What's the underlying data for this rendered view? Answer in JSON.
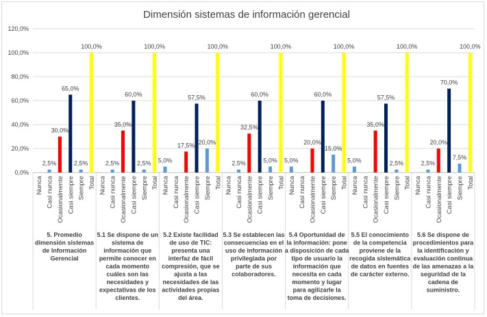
{
  "chart_data": {
    "type": "bar",
    "title": "Dimensión sistemas de información gerencial",
    "ylim": [
      0,
      120
    ],
    "yticks": [
      "0,0%",
      "20,0%",
      "40,0%",
      "60,0%",
      "80,0%",
      "100,0%",
      "120,0%"
    ],
    "grid": true,
    "legend": "none",
    "subcategories": [
      "Nunca",
      "Casi nunca",
      "Ocasionalmente",
      "Casi siempre",
      "Siempre",
      "Total"
    ],
    "colors": {
      "Nunca": "#5b9bd5",
      "Casi nunca": "#5b9bd5",
      "Ocasionalmente": "#ff0000",
      "Casi siempre": "#002060",
      "Siempre": "#5b9bd5",
      "Total": "#ffff00"
    },
    "groups": [
      {
        "label_lines": [
          "5. Promedio",
          "dimensión sistemas",
          "de Información",
          "Gerencial"
        ],
        "values": [
          0,
          2.5,
          30,
          65,
          2.5,
          100
        ],
        "labels": [
          "",
          "2,5%",
          "30,0%",
          "65,0%",
          "2,5%",
          "100,0%"
        ]
      },
      {
        "label_lines": [
          "5.1 Se dispone de un",
          "sistema de",
          "información que",
          "permite conocer en",
          "cada momento",
          "cuáles son las",
          "necesidades y",
          "expectativas de los",
          "clientes."
        ],
        "values": [
          0,
          2.5,
          35,
          60,
          2.5,
          100
        ],
        "labels": [
          "",
          "2,5%",
          "35,0%",
          "60,0%",
          "2,5%",
          "100,0%"
        ]
      },
      {
        "label_lines": [
          "5.2 Existe facilidad",
          "de uso de TIC:",
          "presenta una",
          "interfaz de fácil",
          "compresión, que se",
          "ajusta a las",
          "necesidades de las",
          "actividades propias",
          "del área."
        ],
        "values": [
          5,
          0,
          17.5,
          57.5,
          20,
          100
        ],
        "labels": [
          "5,0%",
          "",
          "17,5%",
          "57,5%",
          "20,0%",
          "100,0%"
        ]
      },
      {
        "label_lines": [
          "5.3 Se establecen las",
          "consecuencias en el",
          "uso de información",
          "privilegiada por",
          "parte de sus",
          "colaboradores."
        ],
        "values": [
          0,
          2.5,
          32.5,
          60,
          5,
          100
        ],
        "labels": [
          "",
          "2,5%",
          "32,5%",
          "60,0%",
          "5,0%",
          "100,0%"
        ]
      },
      {
        "label_lines": [
          "5.4 Oportunidad de",
          "la información: pone",
          "a disposición de cada",
          "tipo de usuario la",
          "información que",
          "necesita en cada",
          "momento y lugar",
          "para agilizarle la",
          "toma de decisiones."
        ],
        "values": [
          5,
          0,
          20,
          60,
          15,
          100
        ],
        "labels": [
          "5,0%",
          "",
          "20,0%",
          "60,0%",
          "15,0%",
          "100,0%"
        ]
      },
      {
        "label_lines": [
          "5.5 El conocimiento",
          "de la competencia",
          "proviene de la",
          "recogida sistemática",
          "de datos en fuentes",
          "de carácter externo."
        ],
        "values": [
          5,
          0,
          35,
          57.5,
          2.5,
          100
        ],
        "labels": [
          "5,0%",
          "",
          "35,0%",
          "57,5%",
          "2,5%",
          "100,0%"
        ]
      },
      {
        "label_lines": [
          "5.6 Se dispone de",
          "procedimientos para",
          "la identificación y",
          "evaluación continua",
          "de las amenazas a la",
          "seguridad de la",
          "cadena de",
          "suministro."
        ],
        "values": [
          0,
          2.5,
          20,
          70,
          7.5,
          100
        ],
        "labels": [
          "",
          "2,5%",
          "20,0%",
          "70,0%",
          "7,5%",
          "100,0%"
        ]
      }
    ]
  }
}
